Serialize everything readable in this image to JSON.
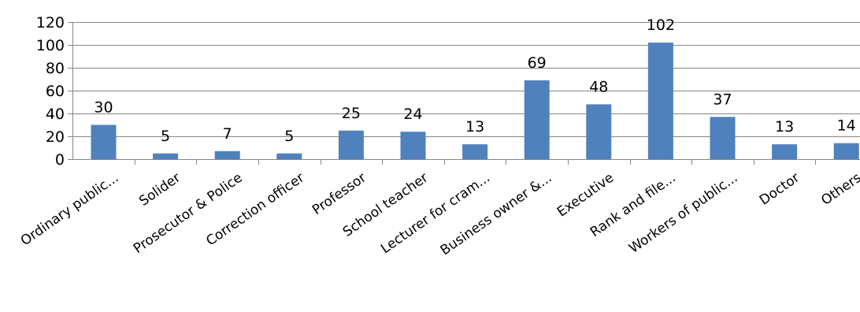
{
  "chart_data": {
    "type": "bar",
    "title": "",
    "xlabel": "",
    "ylabel": "",
    "ylim": [
      0,
      120
    ],
    "yticks": [
      0,
      20,
      40,
      60,
      80,
      100,
      120
    ],
    "grid": true,
    "legend": "none",
    "bar_color": "#4f81bd",
    "grid_color": "#868686",
    "categories": [
      "Ordinary public...",
      "Solider",
      "Prosecutor & Police",
      "Correction officer",
      "Professor",
      "School teacher",
      "Lecturer for cram...",
      "Business owner &...",
      "Executive",
      "Rank and file...",
      "Workers of public...",
      "Doctor",
      "Others"
    ],
    "values": [
      30,
      5,
      7,
      5,
      25,
      24,
      13,
      69,
      48,
      102,
      37,
      13,
      14
    ]
  }
}
